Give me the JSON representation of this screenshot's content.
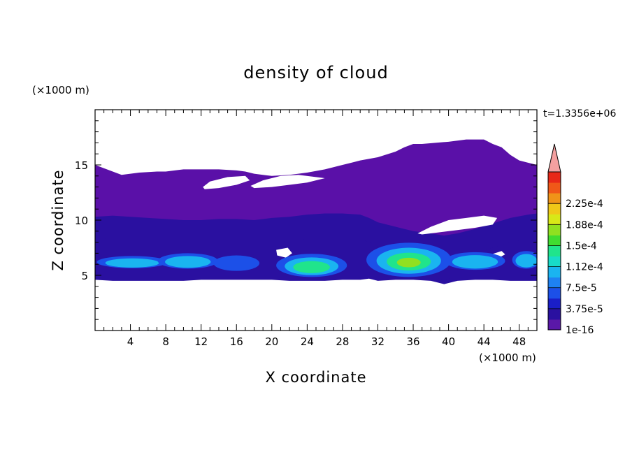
{
  "chart_data": {
    "type": "heatmap",
    "title": "density of cloud",
    "xlabel": "X coordinate",
    "ylabel": "Z coordinate",
    "x_unit": "(×1000 m)",
    "y_unit": "(×1000 m)",
    "time_label": "t=1.3356e+06",
    "xlim": [
      0,
      50
    ],
    "ylim": [
      0,
      20
    ],
    "x_ticks": [
      4,
      8,
      12,
      16,
      20,
      24,
      28,
      32,
      36,
      40,
      44,
      48
    ],
    "y_ticks": [
      5,
      10,
      15
    ],
    "x_minor_step": 1,
    "y_minor_step": 1,
    "colorbar": {
      "labels": [
        "1e-16",
        "3.75e-5",
        "7.5e-5",
        "1.12e-4",
        "1.5e-4",
        "1.88e-4",
        "2.25e-4"
      ],
      "colors": [
        "#5a18a8",
        "#2a10a0",
        "#1a1ec8",
        "#1c50e8",
        "#1e82f2",
        "#1ab4f0",
        "#18dcc8",
        "#20e48c",
        "#40dc30",
        "#90e020",
        "#d8e818",
        "#f0c818",
        "#f09418",
        "#f05818",
        "#e82818"
      ],
      "extend_color": "#f4a0a0"
    },
    "cloud_regions": {
      "upper_layer": {
        "level": "1e-16",
        "color": "#5a10a8",
        "x": [
          0,
          1,
          2,
          3,
          5,
          7,
          8,
          10,
          12,
          14,
          16,
          17,
          18,
          20,
          22,
          24,
          26,
          28,
          29,
          30,
          32,
          34,
          35,
          36,
          37,
          40,
          42,
          44,
          45,
          46,
          47,
          48,
          49,
          50
        ],
        "top": [
          15.0,
          14.7,
          14.4,
          14.1,
          14.3,
          14.4,
          14.4,
          14.6,
          14.6,
          14.6,
          14.5,
          14.4,
          14.2,
          14.0,
          14.1,
          14.3,
          14.6,
          15.0,
          15.2,
          15.4,
          15.7,
          16.2,
          16.6,
          16.9,
          16.9,
          17.1,
          17.3,
          17.3,
          16.9,
          16.6,
          15.9,
          15.4,
          15.2,
          15.0
        ]
      },
      "lower_layer": {
        "level": "1e-16",
        "x": [
          0,
          2,
          4,
          6,
          8,
          10,
          12,
          14,
          16,
          18,
          20,
          22,
          24,
          26,
          28,
          30,
          31,
          32,
          34,
          36,
          38,
          39.5,
          41,
          43,
          45,
          47,
          49,
          50
        ],
        "top": [
          10.3,
          10.4,
          10.3,
          10.2,
          10.1,
          10.0,
          10.0,
          10.1,
          10.1,
          10.0,
          10.2,
          10.3,
          10.5,
          10.6,
          10.6,
          10.5,
          10.2,
          9.8,
          9.4,
          9.0,
          8.8,
          8.6,
          8.8,
          9.2,
          9.7,
          10.2,
          10.5,
          10.6
        ],
        "base": [
          4.6,
          4.5,
          4.5,
          4.5,
          4.5,
          4.5,
          4.6,
          4.6,
          4.6,
          4.6,
          4.6,
          4.5,
          4.5,
          4.5,
          4.6,
          4.6,
          4.7,
          4.5,
          4.6,
          4.6,
          4.5,
          4.2,
          4.5,
          4.6,
          4.6,
          4.5,
          4.5,
          4.5
        ]
      },
      "gaps": [
        {
          "x": [
            12.2,
            13,
            15,
            17,
            17.5,
            16,
            14,
            12.4
          ],
          "z": [
            13.0,
            13.5,
            13.9,
            14.0,
            13.6,
            13.2,
            12.9,
            12.8
          ]
        },
        {
          "x": [
            17.6,
            19,
            21,
            23,
            25,
            26,
            24,
            22,
            20,
            18
          ],
          "z": [
            13.1,
            13.6,
            14.0,
            14.1,
            13.9,
            13.8,
            13.4,
            13.2,
            13.0,
            12.9
          ]
        },
        {
          "x": [
            36.5,
            38,
            40,
            42,
            44,
            45.5,
            45,
            43,
            41,
            39,
            37
          ],
          "z": [
            8.8,
            9.4,
            10.0,
            10.2,
            10.4,
            10.2,
            9.6,
            9.3,
            9.1,
            8.9,
            8.7
          ]
        },
        {
          "x": [
            20.5,
            21.8,
            22.3,
            21.6,
            20.6
          ],
          "z": [
            7.3,
            7.5,
            7.0,
            6.6,
            6.8
          ]
        },
        {
          "x": [
            44.5,
            46.0,
            46.4,
            45.3,
            44.6
          ],
          "z": [
            6.8,
            7.2,
            6.9,
            6.4,
            6.5
          ]
        }
      ],
      "cores": [
        {
          "cx": 4.2,
          "cz": 6.2,
          "rx": 4.0,
          "rz": 0.55,
          "levels": [
            "3.75e-5",
            "7.5e-5"
          ]
        },
        {
          "cx": 10.5,
          "cz": 6.3,
          "rx": 3.4,
          "rz": 0.7,
          "levels": [
            "3.75e-5",
            "7.5e-5"
          ]
        },
        {
          "cx": 16.0,
          "cz": 6.1,
          "rx": 2.6,
          "rz": 0.7,
          "levels": [
            "3.75e-5"
          ]
        },
        {
          "cx": 24.5,
          "cz": 5.9,
          "rx": 4.0,
          "rz": 1.05,
          "levels": [
            "3.75e-5",
            "7.5e-5",
            "1.12e-4"
          ]
        },
        {
          "cx": 35.5,
          "cz": 6.4,
          "rx": 4.8,
          "rz": 1.55,
          "levels": [
            "3.75e-5",
            "7.5e-5",
            "1.12e-4",
            "1.5e-4"
          ]
        },
        {
          "cx": 43.0,
          "cz": 6.3,
          "rx": 3.4,
          "rz": 0.8,
          "levels": [
            "3.75e-5",
            "7.5e-5"
          ]
        },
        {
          "cx": 48.8,
          "cz": 6.4,
          "rx": 1.6,
          "rz": 0.8,
          "levels": [
            "3.75e-5",
            "7.5e-5"
          ]
        }
      ]
    }
  }
}
